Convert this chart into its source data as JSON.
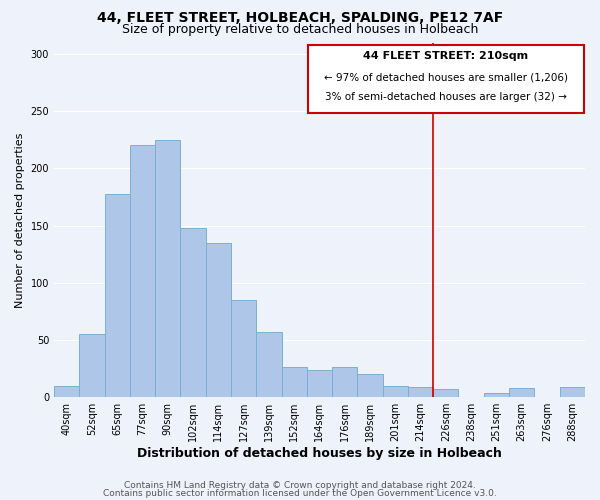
{
  "title": "44, FLEET STREET, HOLBEACH, SPALDING, PE12 7AF",
  "subtitle": "Size of property relative to detached houses in Holbeach",
  "xlabel": "Distribution of detached houses by size in Holbeach",
  "ylabel": "Number of detached properties",
  "bar_labels": [
    "40sqm",
    "52sqm",
    "65sqm",
    "77sqm",
    "90sqm",
    "102sqm",
    "114sqm",
    "127sqm",
    "139sqm",
    "152sqm",
    "164sqm",
    "176sqm",
    "189sqm",
    "201sqm",
    "214sqm",
    "226sqm",
    "238sqm",
    "251sqm",
    "263sqm",
    "276sqm",
    "288sqm"
  ],
  "bar_values": [
    10,
    55,
    178,
    220,
    225,
    148,
    135,
    85,
    57,
    26,
    24,
    26,
    20,
    10,
    9,
    7,
    0,
    4,
    8,
    0,
    9
  ],
  "bar_color": "#aec6e8",
  "bar_edge_color": "#7aafd4",
  "ylim": [
    0,
    310
  ],
  "yticks": [
    0,
    50,
    100,
    150,
    200,
    250,
    300
  ],
  "vline_x": 14.5,
  "vline_color": "#cc0000",
  "annotation_title": "44 FLEET STREET: 210sqm",
  "annotation_line1": "← 97% of detached houses are smaller (1,206)",
  "annotation_line2": "3% of semi-detached houses are larger (32) →",
  "annotation_box_color": "#ffffff",
  "annotation_box_edge_color": "#cc0000",
  "footer_line1": "Contains HM Land Registry data © Crown copyright and database right 2024.",
  "footer_line2": "Contains public sector information licensed under the Open Government Licence v3.0.",
  "background_color": "#eef2fb",
  "plot_bg_color": "#eef2fb",
  "grid_color": "#ffffff",
  "title_fontsize": 10,
  "subtitle_fontsize": 9,
  "xlabel_fontsize": 9,
  "ylabel_fontsize": 8,
  "tick_fontsize": 7,
  "footer_fontsize": 6.5,
  "annotation_title_fontsize": 8,
  "annotation_body_fontsize": 7.5
}
